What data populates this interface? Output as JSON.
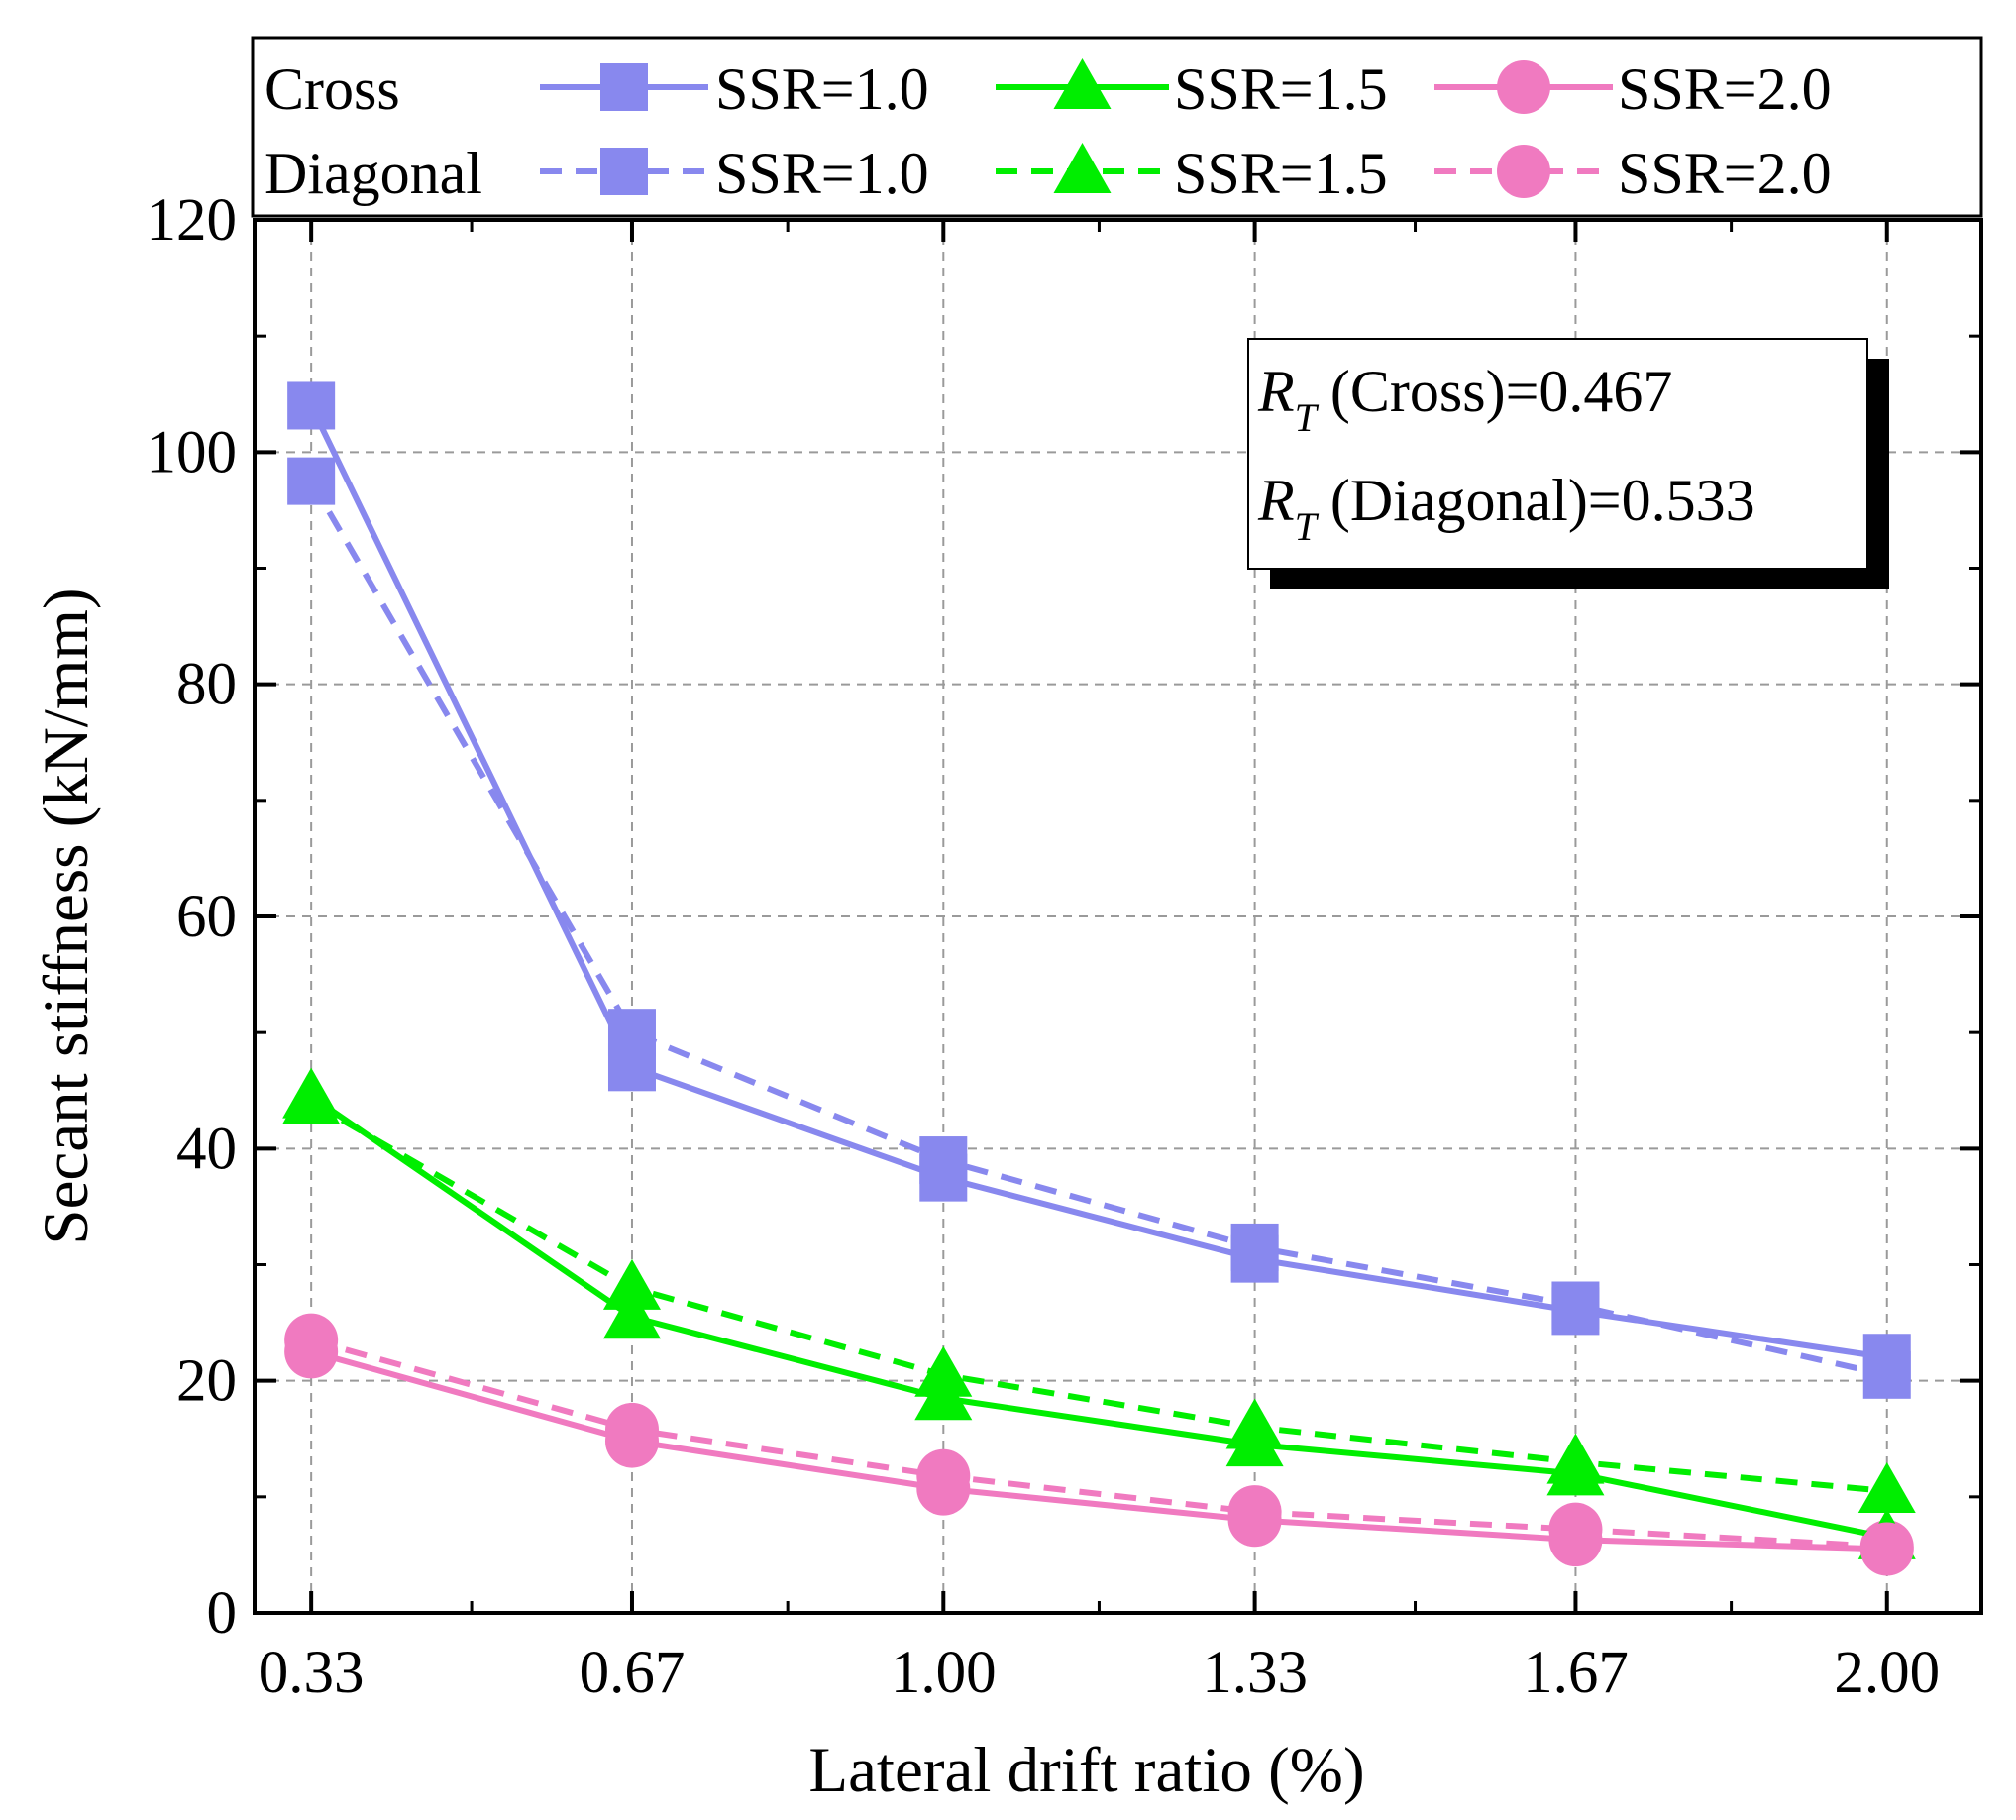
{
  "chart_data": {
    "type": "line",
    "title": "",
    "xlabel": "Lateral drift ratio (%)",
    "ylabel": "Secant stiffness (kN/mm)",
    "categories": [
      "0.33",
      "0.67",
      "1.00",
      "1.33",
      "1.67",
      "2.00"
    ],
    "x": [
      0.33,
      0.67,
      1.0,
      1.33,
      1.67,
      2.0
    ],
    "xlim": [
      0.27,
      2.1
    ],
    "ylim": [
      0,
      120
    ],
    "yticks": [
      "0",
      "20",
      "40",
      "60",
      "80",
      "100",
      "120"
    ],
    "grid": true,
    "legend": {
      "position": "top",
      "group_labels": [
        "Cross",
        "Diagonal"
      ],
      "entries": [
        "SSR=1.0",
        "SSR=1.5",
        "SSR=2.0",
        "SSR=1.0",
        "SSR=1.5",
        "SSR=2.0"
      ]
    },
    "series": [
      {
        "name": "SSR=1.0",
        "group": "Cross",
        "color": "#8888ee",
        "marker": "square",
        "dash": false,
        "values": [
          104.0,
          47.0,
          37.5,
          30.5,
          26.0,
          22.0
        ]
      },
      {
        "name": "SSR=1.5",
        "group": "Cross",
        "color": "#00ee00",
        "marker": "triangle",
        "dash": false,
        "values": [
          44.5,
          25.5,
          18.5,
          14.5,
          12.0,
          6.5
        ]
      },
      {
        "name": "SSR=2.0",
        "group": "Cross",
        "color": "#f07ac0",
        "marker": "circle",
        "dash": false,
        "values": [
          22.5,
          14.8,
          10.7,
          8.0,
          6.3,
          5.5
        ]
      },
      {
        "name": "SSR=1.0",
        "group": "Diagonal",
        "color": "#8888ee",
        "marker": "square",
        "dash": true,
        "values": [
          97.5,
          50.0,
          39.0,
          31.5,
          26.5,
          20.5
        ]
      },
      {
        "name": "SSR=1.5",
        "group": "Diagonal",
        "color": "#00ee00",
        "marker": "triangle",
        "dash": true,
        "values": [
          44.0,
          28.0,
          20.5,
          16.0,
          13.0,
          10.5
        ]
      },
      {
        "name": "SSR=2.0",
        "group": "Diagonal",
        "color": "#f07ac0",
        "marker": "circle",
        "dash": true,
        "values": [
          23.5,
          15.8,
          11.8,
          8.7,
          7.2,
          5.7
        ]
      }
    ],
    "annotations": [
      {
        "symbol": "R",
        "subscript": "T",
        "text": "(Cross)=0.467"
      },
      {
        "symbol": "R",
        "subscript": "T",
        "text": "(Diagonal)=0.533"
      }
    ]
  }
}
